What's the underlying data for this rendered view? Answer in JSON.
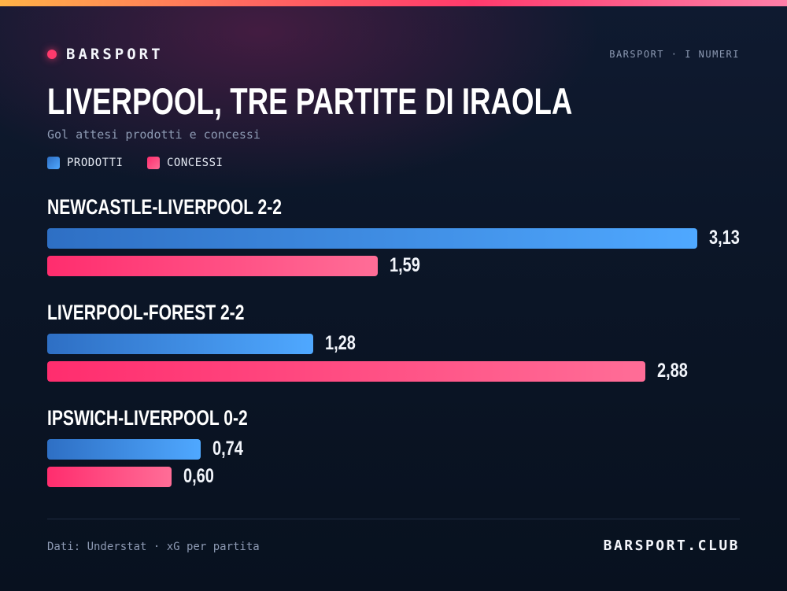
{
  "header": {
    "brand": "BARSPORT",
    "kicker": "BARSPORT · I NUMERI"
  },
  "colors": {
    "prodotti": "#4fa8ff",
    "concessi": "#ff3a6c",
    "accent": "#ff3a6c"
  },
  "chart_data": {
    "type": "bar",
    "orientation": "horizontal",
    "title": "LIVERPOOL, TRE PARTITE DI IRAOLA",
    "subtitle": "Gol attesi prodotti e concessi",
    "categories": [
      "NEWCASTLE-LIVERPOOL 2-2",
      "LIVERPOOL-FOREST 2-2",
      "IPSWICH-LIVERPOOL 0-2"
    ],
    "series": [
      {
        "name": "PRODOTTI",
        "values": [
          3.13,
          1.28,
          0.74
        ],
        "labels": [
          "3,13",
          "1,28",
          "0,74"
        ]
      },
      {
        "name": "CONCESSI",
        "values": [
          1.59,
          2.88,
          0.6
        ],
        "labels": [
          "1,59",
          "2,88",
          "0,60"
        ]
      }
    ],
    "legend": "top-left",
    "grid": false
  },
  "footer": {
    "source": "Dati: Understat · xG per partita",
    "brand": "BARSPORT.CLUB"
  }
}
